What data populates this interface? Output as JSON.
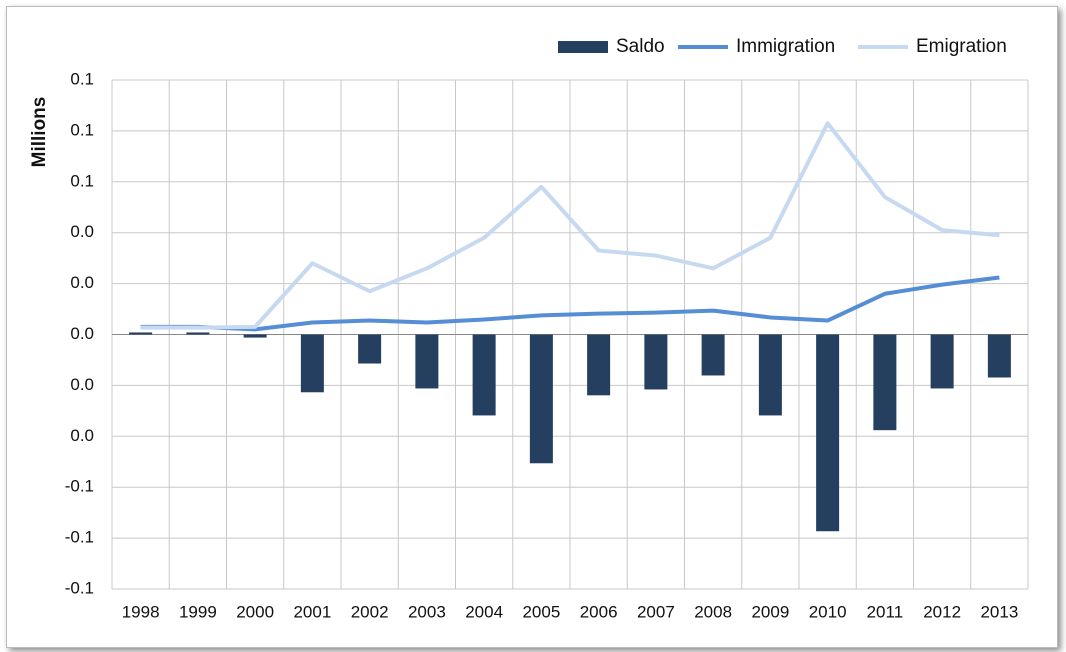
{
  "chart_data": {
    "type": "bar_line",
    "y_label": "Millions",
    "categories": [
      "1998",
      "1999",
      "2000",
      "2001",
      "2002",
      "2003",
      "2004",
      "2005",
      "2006",
      "2007",
      "2008",
      "2009",
      "2010",
      "2011",
      "2012",
      "2013"
    ],
    "series": [
      {
        "name": "Saldo",
        "type": "bar",
        "color": "#243f60",
        "values": [
          0.0008,
          0.0008,
          -0.0012,
          -0.0227,
          -0.0114,
          -0.0212,
          -0.0318,
          -0.0506,
          -0.0239,
          -0.0216,
          -0.0161,
          -0.0318,
          -0.0773,
          -0.0376,
          -0.0212,
          -0.0169
        ]
      },
      {
        "name": "Immigration",
        "type": "line",
        "color": "#558ed5",
        "values": [
          0.003,
          0.003,
          0.002,
          0.0047,
          0.0055,
          0.0047,
          0.0059,
          0.0075,
          0.0082,
          0.0086,
          0.0094,
          0.0067,
          0.0055,
          0.016,
          0.0196,
          0.0224
        ]
      },
      {
        "name": "Emigration",
        "type": "line",
        "color": "#c6d9f1",
        "values": [
          0.0027,
          0.0027,
          0.003,
          0.028,
          0.017,
          0.026,
          0.038,
          0.058,
          0.033,
          0.031,
          0.026,
          0.038,
          0.083,
          0.054,
          0.041,
          0.039
        ]
      }
    ],
    "ylim": [
      -0.1,
      0.1
    ],
    "yticks": [
      {
        "value": -0.1,
        "label": "-0.1"
      },
      {
        "value": -0.08,
        "label": "-0.1"
      },
      {
        "value": -0.06,
        "label": "-0.1"
      },
      {
        "value": -0.04,
        "label": "0.0"
      },
      {
        "value": -0.02,
        "label": "0.0"
      },
      {
        "value": 0,
        "label": "0.0"
      },
      {
        "value": 0.02,
        "label": "0.0"
      },
      {
        "value": 0.04,
        "label": "0.0"
      },
      {
        "value": 0.06,
        "label": "0.1"
      },
      {
        "value": 0.08,
        "label": "0.1"
      },
      {
        "value": 0.1,
        "label": "0.1"
      }
    ],
    "grid": true,
    "legend": "top-right"
  }
}
